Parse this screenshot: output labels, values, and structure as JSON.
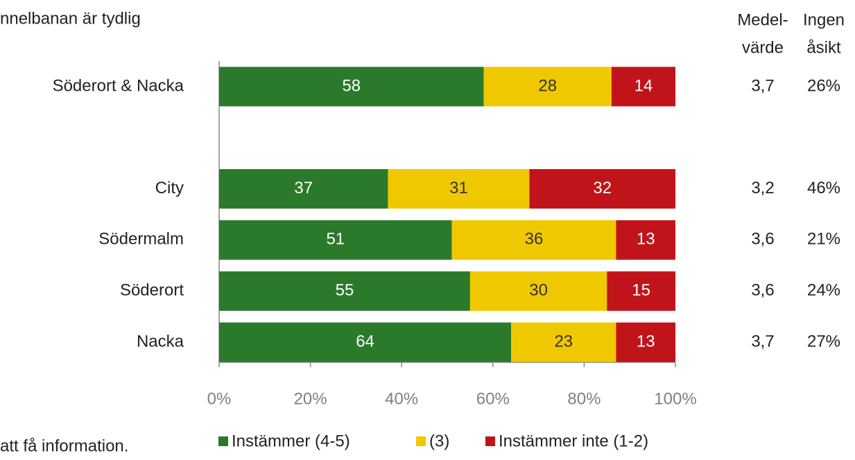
{
  "chart_data": {
    "type": "stacked_bar_horizontal",
    "title": "nnelbanan är tydlig",
    "footnote": "att få information.",
    "categories": [
      "Söderort & Nacka",
      null,
      "City",
      "Södermalm",
      "Söderort",
      "Nacka"
    ],
    "series": [
      {
        "name": "Instämmer (4-5)",
        "color": "#2b7a2b",
        "values": [
          58,
          null,
          37,
          51,
          55,
          64
        ]
      },
      {
        "name": "(3)",
        "color": "#f0c800",
        "values": [
          28,
          null,
          31,
          36,
          30,
          23
        ]
      },
      {
        "name": "Instämmer inte (1-2)",
        "color": "#c0141a",
        "values": [
          14,
          null,
          32,
          13,
          15,
          13
        ]
      }
    ],
    "xlim": [
      0,
      100
    ],
    "xticks": [
      {
        "value": 0,
        "label": "0%"
      },
      {
        "value": 20,
        "label": "20%"
      },
      {
        "value": 40,
        "label": "40%"
      },
      {
        "value": 60,
        "label": "60%"
      },
      {
        "value": 80,
        "label": "80%"
      },
      {
        "value": 100,
        "label": "100%"
      }
    ],
    "side_columns": [
      {
        "header": [
          "Medel-",
          "värde"
        ],
        "values": [
          "3,7",
          null,
          "3,2",
          "3,6",
          "3,6",
          "3,7"
        ]
      },
      {
        "header": [
          "Ingen",
          "åsikt"
        ],
        "values": [
          "26%",
          null,
          "46%",
          "21%",
          "24%",
          "27%"
        ]
      }
    ]
  }
}
